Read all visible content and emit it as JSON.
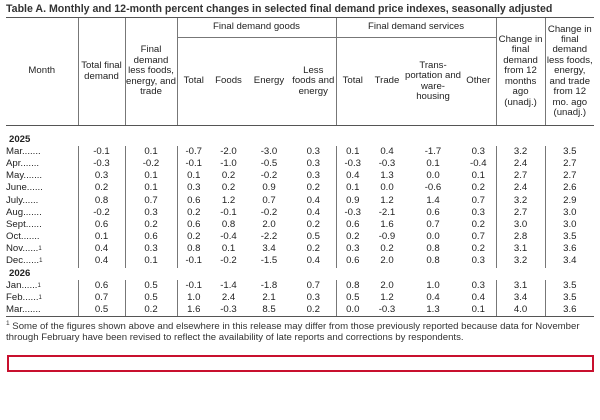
{
  "title": "Table A. Monthly and 12-month percent changes in selected final demand price indexes, seasonally adjusted",
  "headers": {
    "month": "Month",
    "total_final_demand": "Total final demand",
    "fd_less": "Final demand less foods, energy, and trade",
    "goods_group": "Final demand goods",
    "goods_total": "Total",
    "goods_foods": "Foods",
    "goods_energy": "Energy",
    "goods_less": "Less foods and energy",
    "services_group": "Final demand services",
    "services_total": "Total",
    "services_trade": "Trade",
    "services_transport": "Trans-portation and ware-housing",
    "services_other": "Other",
    "change_12mo": "Change in final demand from 12 months ago (unadj.)",
    "change_12mo_less": "Change in final demand less foods, energy, and trade from 12 mo. ago (unadj.)"
  },
  "footnote_mark": "1",
  "years": [
    "2025",
    "2026"
  ],
  "rows_2025": [
    {
      "month": "Mar.",
      "dots": "......",
      "sup": "",
      "v": [
        "-0.1",
        "0.1",
        "-0.7",
        "-2.0",
        "-3.0",
        "0.3",
        "0.1",
        "0.4",
        "-1.7",
        "0.3",
        "3.2",
        "3.5"
      ]
    },
    {
      "month": "Apr.",
      "dots": "......",
      "sup": "",
      "v": [
        "-0.3",
        "-0.2",
        "-0.1",
        "-1.0",
        "-0.5",
        "0.3",
        "-0.3",
        "-0.3",
        "0.1",
        "-0.4",
        "2.4",
        "2.7"
      ]
    },
    {
      "month": "May.",
      "dots": "......",
      "sup": "",
      "v": [
        "0.3",
        "0.1",
        "0.1",
        "0.2",
        "-0.2",
        "0.3",
        "0.4",
        "1.3",
        "0.0",
        "0.1",
        "2.7",
        "2.7"
      ]
    },
    {
      "month": "June.",
      "dots": ".....",
      "sup": "",
      "v": [
        "0.2",
        "0.1",
        "0.3",
        "0.2",
        "0.9",
        "0.2",
        "0.1",
        "0.0",
        "-0.6",
        "0.2",
        "2.4",
        "2.6"
      ]
    },
    {
      "month": "July.",
      "dots": ".....",
      "sup": "",
      "v": [
        "0.8",
        "0.7",
        "0.6",
        "1.2",
        "0.7",
        "0.4",
        "0.9",
        "1.2",
        "1.4",
        "0.7",
        "3.2",
        "2.9"
      ]
    },
    {
      "month": "Aug.",
      "dots": "......",
      "sup": "",
      "v": [
        "-0.2",
        "0.3",
        "0.2",
        "-0.1",
        "-0.2",
        "0.4",
        "-0.3",
        "-2.1",
        "0.6",
        "0.3",
        "2.7",
        "3.0"
      ]
    },
    {
      "month": "Sept.",
      "dots": ".....",
      "sup": "",
      "v": [
        "0.6",
        "0.2",
        "0.6",
        "0.8",
        "2.0",
        "0.2",
        "0.6",
        "1.6",
        "0.7",
        "0.2",
        "3.0",
        "3.0"
      ]
    },
    {
      "month": "Oct.",
      "dots": "......",
      "sup": "",
      "v": [
        "0.1",
        "0.6",
        "0.2",
        "-0.4",
        "-2.2",
        "0.5",
        "0.2",
        "-0.9",
        "0.0",
        "0.7",
        "2.8",
        "3.5"
      ]
    },
    {
      "month": "Nov.",
      "dots": ".....",
      "sup": "1",
      "v": [
        "0.4",
        "0.3",
        "0.8",
        "0.1",
        "3.4",
        "0.2",
        "0.3",
        "0.2",
        "0.8",
        "0.2",
        "3.1",
        "3.6"
      ]
    },
    {
      "month": "Dec.",
      "dots": ".....",
      "sup": "1",
      "v": [
        "0.4",
        "0.1",
        "-0.1",
        "-0.2",
        "-1.5",
        "0.4",
        "0.6",
        "2.0",
        "0.8",
        "0.3",
        "3.2",
        "3.4"
      ]
    }
  ],
  "rows_2026": [
    {
      "month": "Jan.",
      "dots": ".....",
      "sup": "1",
      "v": [
        "0.6",
        "0.5",
        "-0.1",
        "-1.4",
        "-1.8",
        "0.7",
        "0.8",
        "2.0",
        "1.0",
        "0.3",
        "3.1",
        "3.5"
      ]
    },
    {
      "month": "Feb.",
      "dots": ".....",
      "sup": "1",
      "v": [
        "0.7",
        "0.5",
        "1.0",
        "2.4",
        "2.1",
        "0.3",
        "0.5",
        "1.2",
        "0.4",
        "0.4",
        "3.4",
        "3.5"
      ]
    },
    {
      "month": "Mar.",
      "dots": "......",
      "sup": "",
      "v": [
        "0.5",
        "0.2",
        "1.6",
        "-0.3",
        "8.5",
        "0.2",
        "0.0",
        "-0.3",
        "1.3",
        "0.1",
        "4.0",
        "3.6"
      ]
    }
  ],
  "footnote": "Some of the figures shown above and elsewhere in this release may differ from those previously reported because data for November through February have been revised to reflect the availability of late reports and corrections by respondents.",
  "colors": {
    "highlight": "#c8102e",
    "rule": "#555555",
    "text": "#222222"
  }
}
